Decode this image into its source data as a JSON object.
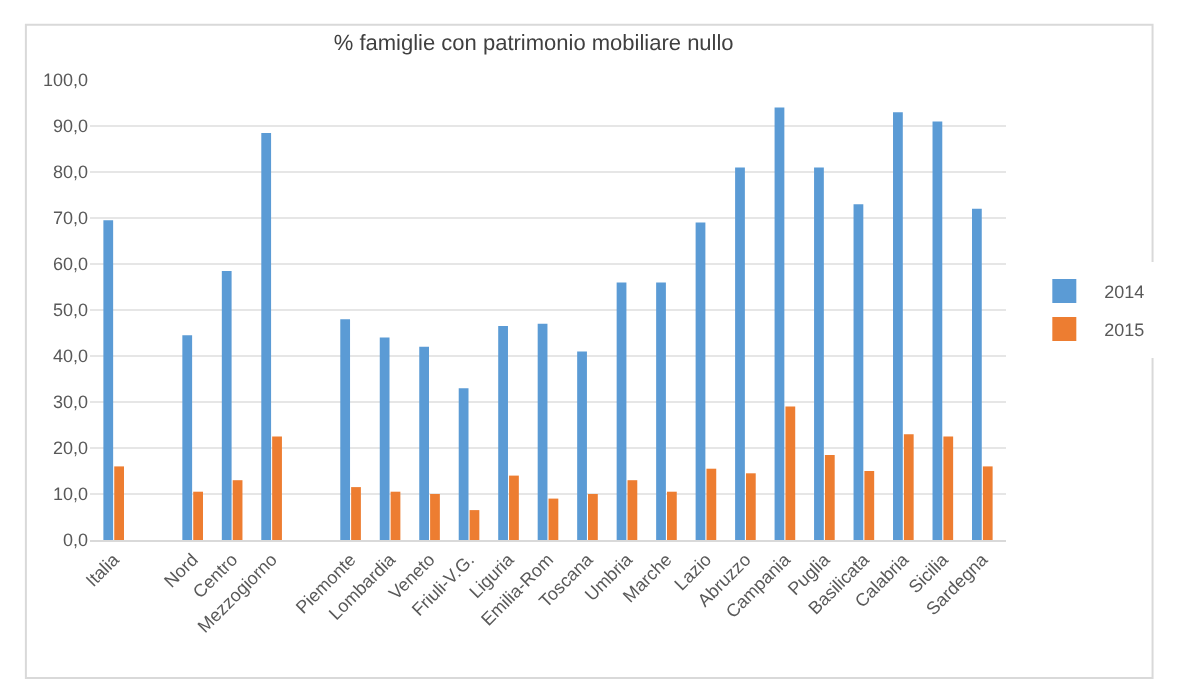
{
  "chart_data": {
    "type": "bar",
    "title": "% famiglie con patrimonio mobiliare nullo",
    "categories": [
      "Italia",
      null,
      "Nord",
      "Centro",
      "Mezzogiorno",
      null,
      "Piemonte",
      "Lombardia",
      "Veneto",
      "Friuli-V.G.",
      "Liguria",
      "Emilia-Rom",
      "Toscana",
      "Umbria",
      "Marche",
      "Lazio",
      "Abruzzo",
      "Campania",
      "Puglia",
      "Basilicata",
      "Calabria",
      "Sicilia",
      "Sardegna"
    ],
    "series": [
      {
        "name": "2014",
        "color": "#5b9bd5",
        "values": [
          69.5,
          null,
          44.5,
          58.5,
          88.5,
          null,
          48,
          44,
          42,
          33,
          46.5,
          47,
          41,
          56,
          56,
          69,
          81,
          94,
          81,
          73,
          93,
          91,
          72
        ]
      },
      {
        "name": "2015",
        "color": "#ed7d31",
        "values": [
          16,
          null,
          10.5,
          13,
          22.5,
          null,
          11.5,
          10.5,
          10,
          6.5,
          14,
          9,
          10,
          13,
          10.5,
          15.5,
          14.5,
          29,
          18.5,
          15,
          23,
          22.5,
          16
        ]
      }
    ],
    "ylim": [
      0,
      100
    ],
    "yticks": [
      {
        "value": 0,
        "label": "0,0"
      },
      {
        "value": 10,
        "label": "10,0"
      },
      {
        "value": 20,
        "label": "20,0"
      },
      {
        "value": 30,
        "label": "30,0"
      },
      {
        "value": 40,
        "label": "40,0"
      },
      {
        "value": 50,
        "label": "50,0"
      },
      {
        "value": 60,
        "label": "60,0"
      },
      {
        "value": 70,
        "label": "70,0"
      },
      {
        "value": 80,
        "label": "80,0"
      },
      {
        "value": 90,
        "label": "90,0"
      },
      {
        "value": 100,
        "label": "100,0"
      }
    ],
    "grid": "y",
    "legend": "right"
  }
}
